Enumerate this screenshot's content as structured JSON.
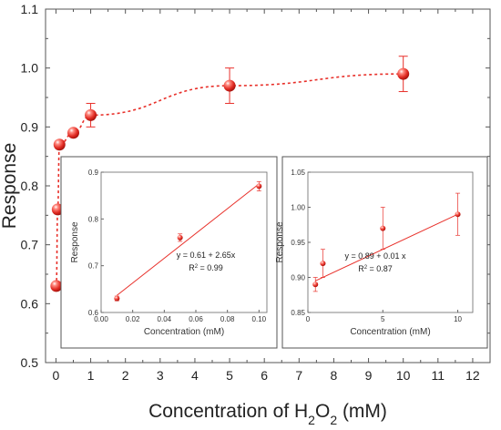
{
  "chart_data": [
    {
      "id": "main",
      "type": "scatter",
      "xlabel_prefix": "Concentration of H",
      "xlabel_sub1": "2",
      "xlabel_mid": "O",
      "xlabel_sub2": "2",
      "xlabel_suffix": " (mM)",
      "ylabel": "Response",
      "xlim": [
        -0.3,
        12.5
      ],
      "ylim": [
        0.5,
        1.1
      ],
      "xticks": [
        "0",
        "1",
        "2",
        "3",
        "4",
        "5",
        "6",
        "7",
        "8",
        "9",
        "10",
        "11",
        "12"
      ],
      "yticks": [
        "0.5",
        "0.6",
        "0.7",
        "0.8",
        "0.9",
        "1.0",
        "1.1"
      ],
      "points": [
        {
          "x": 0.01,
          "y": 0.63,
          "err": 0.0
        },
        {
          "x": 0.05,
          "y": 0.76,
          "err": 0.0
        },
        {
          "x": 0.1,
          "y": 0.87,
          "err": 0.0
        },
        {
          "x": 0.5,
          "y": 0.89,
          "err": 0.0
        },
        {
          "x": 1,
          "y": 0.92,
          "err": 0.02
        },
        {
          "x": 5,
          "y": 0.97,
          "err": 0.03
        },
        {
          "x": 10,
          "y": 0.99,
          "err": 0.03
        }
      ],
      "fit_curve": "dashed",
      "color": "#e8302a"
    },
    {
      "id": "inset1",
      "type": "scatter",
      "xlabel": "Concentration (mM)",
      "ylabel": "Response",
      "xlim": [
        0.0,
        0.105
      ],
      "ylim": [
        0.6,
        0.9
      ],
      "xticks": [
        "0.00",
        "0.02",
        "0.04",
        "0.06",
        "0.08",
        "0.10"
      ],
      "yticks": [
        "0.6",
        "0.7",
        "0.8",
        "0.9"
      ],
      "points": [
        {
          "x": 0.01,
          "y": 0.63,
          "err": 0.005
        },
        {
          "x": 0.05,
          "y": 0.76,
          "err": 0.008
        },
        {
          "x": 0.1,
          "y": 0.87,
          "err": 0.01
        }
      ],
      "fit": {
        "intercept": 0.61,
        "slope": 2.65
      },
      "equation": "y = 0.61 + 2.65x",
      "r2_label": "R",
      "r2_sup": "2",
      "r2_value": " = 0.99",
      "color": "#e8302a"
    },
    {
      "id": "inset2",
      "type": "scatter",
      "xlabel": "Concentration (mM)",
      "ylabel": "Response",
      "xlim": [
        0,
        11
      ],
      "ylim": [
        0.85,
        1.05
      ],
      "xticks": [
        "0",
        "5",
        "10"
      ],
      "yticks": [
        "0.85",
        "0.90",
        "0.95",
        "1.00",
        "1.05"
      ],
      "points": [
        {
          "x": 0.5,
          "y": 0.89,
          "err": 0.01
        },
        {
          "x": 1,
          "y": 0.92,
          "err": 0.02
        },
        {
          "x": 5,
          "y": 0.97,
          "err": 0.03
        },
        {
          "x": 10,
          "y": 0.99,
          "err": 0.03
        }
      ],
      "fit": {
        "intercept": 0.89,
        "slope": 0.01
      },
      "equation": "y = 0.89 + 0.01 x",
      "r2_label": "R",
      "r2_sup": "2",
      "r2_value": " = 0.87",
      "color": "#e8302a"
    }
  ]
}
